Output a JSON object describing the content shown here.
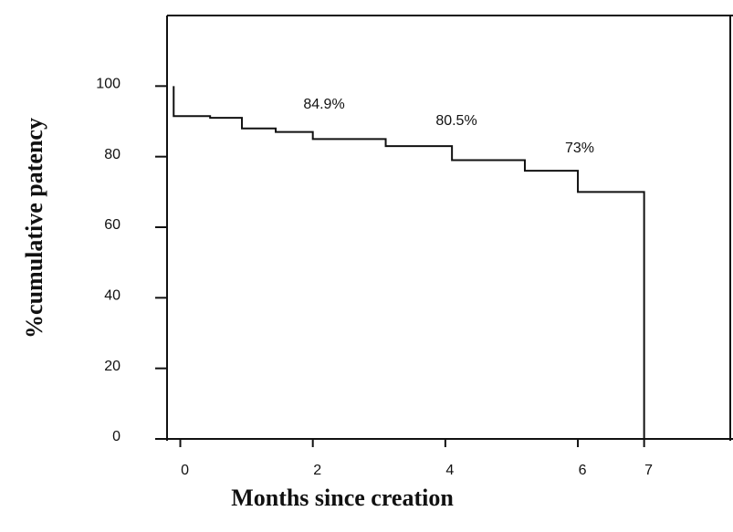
{
  "chart_data": {
    "type": "step",
    "x_label": "Months since creation",
    "y_label": "%cumulative patency",
    "x": [
      -0.1,
      -0.1,
      0.45,
      0.93,
      1.44,
      2.0,
      3.1,
      4.1,
      5.2,
      6.0,
      7.0,
      7.0
    ],
    "values": [
      100,
      91.5,
      91,
      88,
      87,
      85,
      83,
      79,
      76,
      70,
      70,
      0
    ],
    "color": "#111111",
    "xlim": [
      -0.2,
      8.3
    ],
    "xticks": [
      0,
      2,
      4,
      6,
      7
    ],
    "ylim": [
      0,
      120
    ],
    "yticks": [
      0,
      20,
      40,
      60,
      80,
      100
    ],
    "annotations": [
      "84.9%",
      "80.5%",
      "73%"
    ]
  }
}
